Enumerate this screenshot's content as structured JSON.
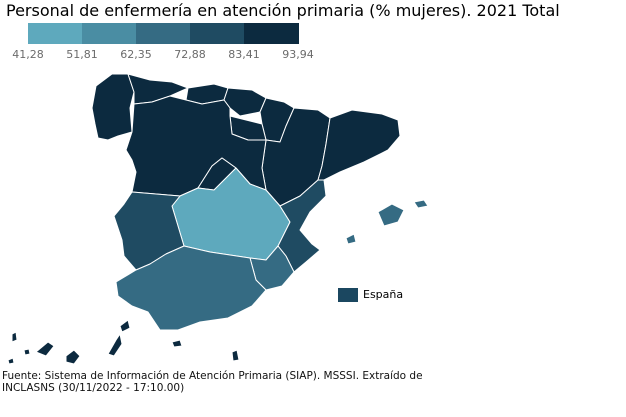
{
  "title": "Personal de enfermería en atención primaria (% mujeres). 2021 Total",
  "scale": {
    "colors": [
      "#5ea9bd",
      "#4a8da3",
      "#356b83",
      "#1f4b62",
      "#0c2a3f"
    ],
    "ticks": [
      "41,28",
      "51,81",
      "62,35",
      "72,88",
      "83,41",
      "93,94"
    ]
  },
  "map_legend": {
    "label": "España",
    "color": "#1b4760"
  },
  "regions": [
    {
      "name": "Galicia",
      "class": 5
    },
    {
      "name": "Asturias",
      "class": 5
    },
    {
      "name": "Cantabria",
      "class": 5
    },
    {
      "name": "País Vasco",
      "class": 5
    },
    {
      "name": "Navarra",
      "class": 5
    },
    {
      "name": "La Rioja",
      "class": 5
    },
    {
      "name": "Aragón",
      "class": 5
    },
    {
      "name": "Cataluña",
      "class": 5
    },
    {
      "name": "Castilla y León",
      "class": 5
    },
    {
      "name": "Madrid",
      "class": 5
    },
    {
      "name": "Castilla-La Mancha",
      "class": 1
    },
    {
      "name": "Extremadura",
      "class": 4
    },
    {
      "name": "Comunidad Valenciana",
      "class": 4
    },
    {
      "name": "Murcia",
      "class": 3
    },
    {
      "name": "Andalucía",
      "class": 3
    },
    {
      "name": "Baleares",
      "class": 3
    },
    {
      "name": "Canarias",
      "class": 5
    },
    {
      "name": "Ceuta",
      "class": 5
    },
    {
      "name": "Melilla",
      "class": 5
    }
  ],
  "source": "Fuente: Sistema de Información de Atención Primaria (SIAP). MSSSI. Extraído de INCLASNS (30/11/2022 - 17:10.00)"
}
